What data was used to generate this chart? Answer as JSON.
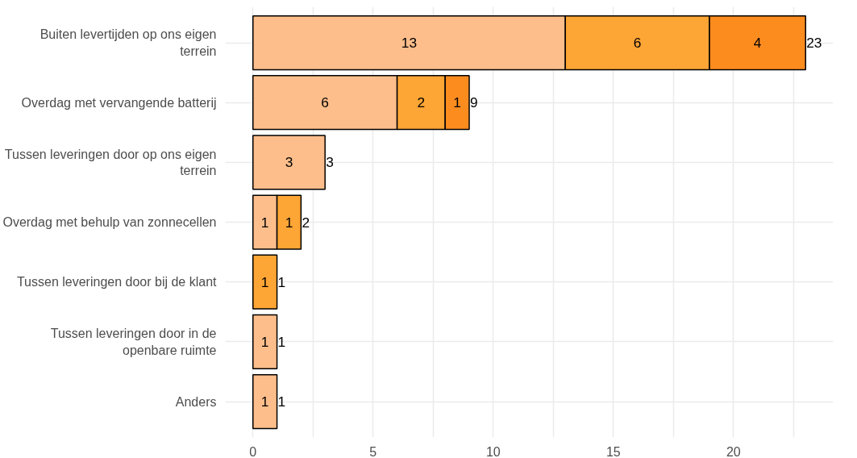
{
  "chart_data": {
    "type": "bar",
    "orientation": "horizontal",
    "stacked": true,
    "categories": [
      "Buiten levertijden op ons eigen\nterrein",
      "Overdag met vervangende batterij",
      "Tussen leveringen door op ons eigen\nterrein",
      "Overdag met behulp van zonnecellen",
      "Tussen leveringen door bij de klant",
      "Tussen leveringen door in de\nopenbare ruimte",
      "Anders"
    ],
    "series": [
      {
        "color": "#fdbe8b",
        "values": [
          13,
          6,
          3,
          1,
          null,
          1,
          1
        ]
      },
      {
        "color": "#fda535",
        "values": [
          6,
          2,
          null,
          1,
          1,
          null,
          null
        ]
      },
      {
        "color": "#fd8c1f",
        "values": [
          4,
          1,
          null,
          null,
          null,
          null,
          null
        ]
      }
    ],
    "totals": [
      "23",
      "9",
      "3",
      "2",
      "1",
      "1",
      "1"
    ],
    "data_labels": true,
    "xlim": [
      -1.15,
      24.15
    ],
    "xticks": [
      0,
      {
        "value": 2.5,
        "label": null
      },
      5,
      {
        "value": 7.5,
        "label": null
      },
      10,
      {
        "value": 12.5,
        "label": null
      },
      15,
      {
        "value": 17.5,
        "label": null
      },
      20,
      {
        "value": 22.5,
        "label": null
      }
    ],
    "grid": true
  }
}
